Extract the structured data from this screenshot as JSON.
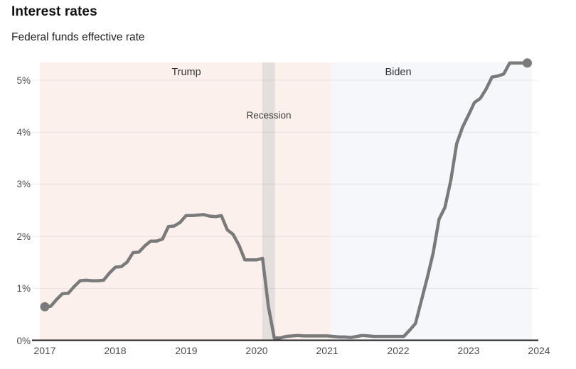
{
  "header": {
    "title": "Interest rates",
    "subtitle": "Federal funds effective rate"
  },
  "chart_data": {
    "type": "line",
    "title": "Interest rates",
    "subtitle": "Federal funds effective rate",
    "unit": "percent",
    "x_start_month": "2017-01",
    "x_end_month": "2023-11",
    "monthly_values": [
      0.65,
      0.66,
      0.79,
      0.9,
      0.91,
      1.04,
      1.15,
      1.16,
      1.15,
      1.15,
      1.16,
      1.3,
      1.41,
      1.42,
      1.51,
      1.69,
      1.7,
      1.82,
      1.91,
      1.91,
      1.95,
      2.19,
      2.2,
      2.27,
      2.4,
      2.4,
      2.41,
      2.42,
      2.39,
      2.38,
      2.4,
      2.13,
      2.04,
      1.83,
      1.55,
      1.55,
      1.55,
      1.58,
      0.65,
      0.05,
      0.05,
      0.08,
      0.09,
      0.1,
      0.09,
      0.09,
      0.09,
      0.09,
      0.09,
      0.08,
      0.07,
      0.07,
      0.06,
      0.08,
      0.1,
      0.09,
      0.08,
      0.08,
      0.08,
      0.08,
      0.08,
      0.08,
      0.2,
      0.33,
      0.77,
      1.21,
      1.68,
      2.33,
      2.56,
      3.08,
      3.78,
      4.1,
      4.33,
      4.57,
      4.65,
      4.83,
      5.06,
      5.08,
      5.12,
      5.33,
      5.33,
      5.33,
      5.33
    ],
    "first_value": 0.65,
    "last_value": 5.33,
    "x_tick_labels": [
      "2017",
      "2018",
      "2019",
      "2020",
      "2021",
      "2022",
      "2023",
      "2024"
    ],
    "y_tick_labels": [
      "0%",
      "1%",
      "2%",
      "3%",
      "4%",
      "5%"
    ],
    "ylim": [
      0,
      5.34
    ],
    "xlim_years": [
      2016.93,
      2023.99
    ],
    "grid": true,
    "legend_position": "none",
    "line_color": "#7a7a7a",
    "axis_color": "#1f1f1f",
    "grid_color": "rgba(0,0,0,0.075)",
    "regions": [
      {
        "label": "Trump",
        "start_year": 2016.93,
        "end_year": 2021.055,
        "color": "#fcf0ed",
        "label_anchor_year": 2019
      },
      {
        "label": "Biden",
        "start_year": 2021.055,
        "end_year": 2023.9,
        "color": "#f6f7fb",
        "label_anchor_year": 2022
      }
    ],
    "recession_band": {
      "label": "Recession",
      "start_year": 2020.08,
      "end_year": 2020.26,
      "color": "#e4dfdd"
    }
  }
}
